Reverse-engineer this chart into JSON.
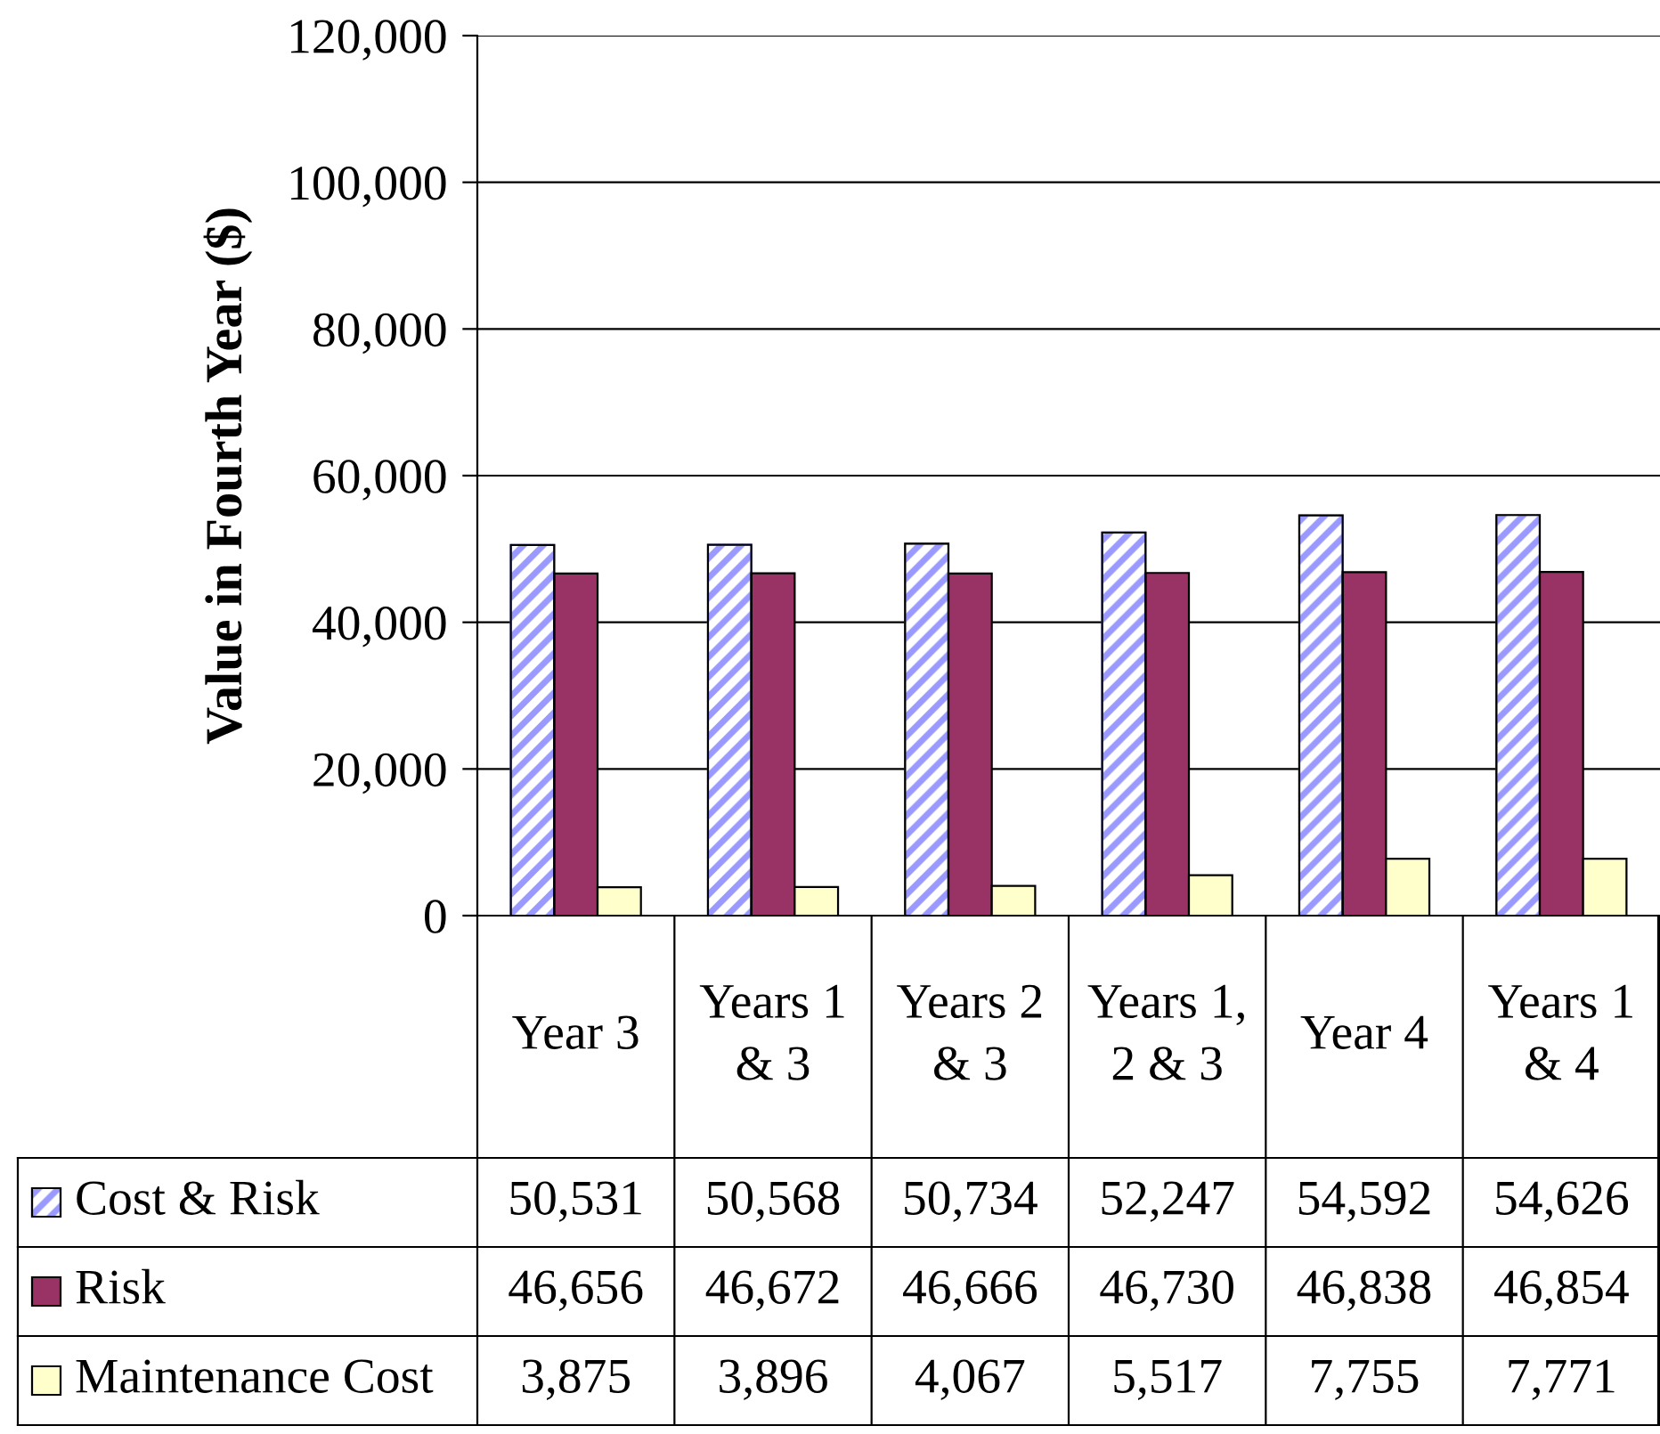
{
  "chart_data": {
    "type": "bar",
    "ylabel": "Value in Fourth Year ($)",
    "categories": [
      "Year 3",
      "Years 1\n& 3",
      "Years 2\n& 3",
      "Years 1,\n2 & 3",
      "Year 4",
      "Years 1\n& 4"
    ],
    "series": [
      {
        "name": "Cost & Risk",
        "color": "#9999ff",
        "values": [
          50531,
          50568,
          50734,
          52247,
          54592,
          54626
        ],
        "value_labels": [
          "50,531",
          "50,568",
          "50,734",
          "52,247",
          "54,592",
          "54,626"
        ]
      },
      {
        "name": "Risk",
        "color": "#993366",
        "values": [
          46656,
          46672,
          46666,
          46730,
          46838,
          46854
        ],
        "value_labels": [
          "46,656",
          "46,672",
          "46,666",
          "46,730",
          "46,838",
          "46,854"
        ]
      },
      {
        "name": "Maintenance Cost",
        "color": "#ffffcc",
        "values": [
          3875,
          3896,
          4067,
          5517,
          7755,
          7771
        ],
        "value_labels": [
          "3,875",
          "3,896",
          "4,067",
          "5,517",
          "7,755",
          "7,771"
        ]
      }
    ],
    "ylim": [
      0,
      120000
    ],
    "yticks": [
      0,
      {
        "value": 20000,
        "label": "20,000"
      },
      {
        "value": 40000,
        "label": "40,000"
      },
      {
        "value": 60000,
        "label": "60,000"
      },
      {
        "value": 80000,
        "label": "80,000"
      },
      {
        "value": 100000,
        "label": "100,000"
      },
      {
        "value": 120000,
        "label": "120,000"
      }
    ],
    "grid": "y",
    "legend": "bottom left"
  }
}
